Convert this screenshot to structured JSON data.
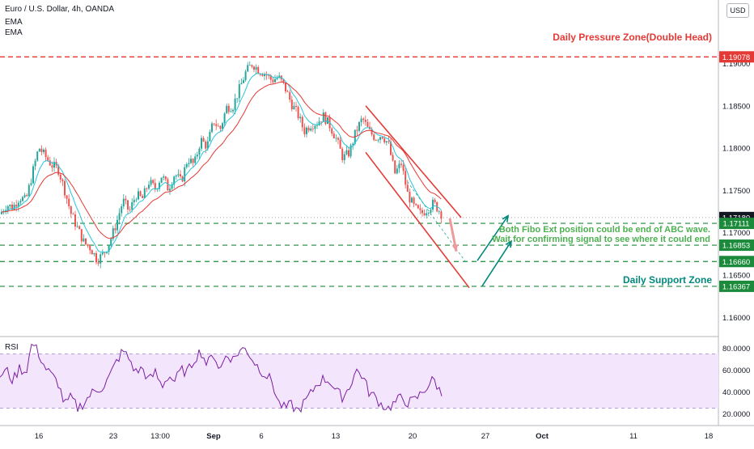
{
  "header": {
    "symbol": "Euro / U.S. Dollar, 4h, OANDA",
    "indicators": [
      "EMA",
      "EMA"
    ],
    "currency_button": "USD"
  },
  "annotations": {
    "pressure_zone": "Daily Pressure Zone(Double Head)",
    "support_zone": "Daily Support Zone",
    "note_line1": "Both Fibo Ext position could be end of ABC wave.",
    "note_line2": "Wait for confirming signal to see where it could end"
  },
  "colors": {
    "bull": "#26a69a",
    "bear": "#ef5350",
    "red_line": "#e53935",
    "green_line": "#1b8a3a",
    "teal_text": "#00897b",
    "rsi_line": "#7b1fa2",
    "rsi_band": "#f3e5fc"
  },
  "chart_data": [
    {
      "type": "candlestick",
      "y_axis_ticks": [
        "1.19000",
        "1.18500",
        "1.18000",
        "1.17500",
        "1.17000",
        "1.16500",
        "1.16000"
      ],
      "ylim": [
        1.1585,
        1.1975
      ],
      "x_axis_ticks": [
        "16",
        "23",
        "13:00",
        "Sep",
        "6",
        "13",
        "20",
        "27",
        "Oct",
        "11",
        "18"
      ],
      "levels": [
        {
          "name": "pressure",
          "value": 1.19078,
          "label": "1.19078",
          "style": "red-dashed"
        },
        {
          "name": "last-price",
          "value": 1.1718,
          "label": "1.17180",
          "style": "dotted"
        },
        {
          "name": "level-1",
          "value": 1.17111,
          "label": "1.17111",
          "style": "green-dashed"
        },
        {
          "name": "level-2",
          "value": 1.16853,
          "label": "1.16853",
          "style": "green-dashed"
        },
        {
          "name": "level-3",
          "value": 1.1666,
          "label": "1.16660",
          "style": "green-dashed"
        },
        {
          "name": "support",
          "value": 1.16367,
          "label": "1.16367",
          "style": "green-dashed"
        }
      ],
      "price_path": [
        [
          0,
          1.1722
        ],
        [
          8,
          1.1733
        ],
        [
          16,
          1.173
        ],
        [
          24,
          1.1742
        ],
        [
          32,
          1.1738
        ],
        [
          40,
          1.177
        ],
        [
          48,
          1.1801
        ],
        [
          56,
          1.179
        ],
        [
          64,
          1.178
        ],
        [
          72,
          1.1775
        ],
        [
          80,
          1.175
        ],
        [
          88,
          1.1722
        ],
        [
          96,
          1.1705
        ],
        [
          104,
          1.1688
        ],
        [
          112,
          1.1682
        ],
        [
          120,
          1.1668
        ],
        [
          128,
          1.1675
        ],
        [
          136,
          1.169
        ],
        [
          144,
          1.1712
        ],
        [
          152,
          1.1738
        ],
        [
          160,
          1.1725
        ],
        [
          168,
          1.1745
        ],
        [
          176,
          1.174
        ],
        [
          184,
          1.176
        ],
        [
          192,
          1.1752
        ],
        [
          200,
          1.1768
        ],
        [
          208,
          1.1752
        ],
        [
          216,
          1.177
        ],
        [
          224,
          1.176
        ],
        [
          232,
          1.1788
        ],
        [
          240,
          1.178
        ],
        [
          248,
          1.181
        ],
        [
          256,
          1.1802
        ],
        [
          264,
          1.1832
        ],
        [
          272,
          1.1822
        ],
        [
          280,
          1.1848
        ],
        [
          288,
          1.185
        ],
        [
          296,
          1.187
        ],
        [
          304,
          1.189
        ],
        [
          312,
          1.19
        ],
        [
          320,
          1.1892
        ],
        [
          328,
          1.1888
        ],
        [
          336,
          1.188
        ],
        [
          344,
          1.1884
        ],
        [
          352,
          1.1872
        ],
        [
          360,
          1.1853
        ],
        [
          368,
          1.184
        ],
        [
          376,
          1.182
        ],
        [
          384,
          1.1828
        ],
        [
          392,
          1.183
        ],
        [
          400,
          1.1838
        ],
        [
          408,
          1.1826
        ],
        [
          416,
          1.181
        ],
        [
          424,
          1.1788
        ],
        [
          432,
          1.1795
        ],
        [
          440,
          1.182
        ],
        [
          448,
          1.1835
        ],
        [
          456,
          1.182
        ],
        [
          464,
          1.1812
        ],
        [
          472,
          1.1816
        ],
        [
          480,
          1.1805
        ],
        [
          488,
          1.177
        ],
        [
          496,
          1.1782
        ],
        [
          504,
          1.1745
        ],
        [
          512,
          1.173
        ],
        [
          520,
          1.1722
        ],
        [
          528,
          1.1728
        ],
        [
          536,
          1.1735
        ],
        [
          544,
          1.1725
        ],
        [
          548,
          1.1718
        ]
      ],
      "channel": {
        "upper": {
          "from": [
            452,
            1.185
          ],
          "to": [
            570,
            1.1718
          ]
        },
        "lower": {
          "from": [
            452,
            1.1795
          ],
          "to": [
            580,
            1.1635
          ]
        }
      },
      "arrows": [
        {
          "from": [
            590,
            1.1667
          ],
          "to": [
            628,
            1.172
          ],
          "color": "teal"
        },
        {
          "from": [
            596,
            1.1637
          ],
          "to": [
            632,
            1.169
          ],
          "color": "teal"
        },
        {
          "from": [
            556,
            1.1717
          ],
          "to": [
            564,
            1.1678
          ],
          "color": "red"
        }
      ]
    },
    {
      "type": "line",
      "title": "RSI",
      "y_axis_ticks": [
        "80.0000",
        "60.0000",
        "40.0000",
        "20.0000"
      ],
      "ylim": [
        12,
        88
      ],
      "band": [
        25,
        75
      ],
      "values": [
        [
          0,
          55
        ],
        [
          8,
          60
        ],
        [
          16,
          50
        ],
        [
          24,
          62
        ],
        [
          32,
          58
        ],
        [
          40,
          86
        ],
        [
          48,
          75
        ],
        [
          56,
          62
        ],
        [
          64,
          55
        ],
        [
          72,
          48
        ],
        [
          80,
          28
        ],
        [
          88,
          35
        ],
        [
          96,
          25
        ],
        [
          104,
          30
        ],
        [
          112,
          38
        ],
        [
          120,
          42
        ],
        [
          128,
          45
        ],
        [
          136,
          55
        ],
        [
          144,
          68
        ],
        [
          152,
          78
        ],
        [
          160,
          70
        ],
        [
          168,
          58
        ],
        [
          176,
          62
        ],
        [
          184,
          50
        ],
        [
          192,
          58
        ],
        [
          200,
          45
        ],
        [
          208,
          55
        ],
        [
          216,
          50
        ],
        [
          224,
          60
        ],
        [
          232,
          58
        ],
        [
          240,
          70
        ],
        [
          248,
          78
        ],
        [
          256,
          65
        ],
        [
          264,
          75
        ],
        [
          272,
          60
        ],
        [
          280,
          75
        ],
        [
          288,
          70
        ],
        [
          296,
          78
        ],
        [
          304,
          80
        ],
        [
          312,
          70
        ],
        [
          320,
          62
        ],
        [
          328,
          56
        ],
        [
          336,
          50
        ],
        [
          344,
          30
        ],
        [
          352,
          25
        ],
        [
          360,
          28
        ],
        [
          368,
          22
        ],
        [
          376,
          30
        ],
        [
          384,
          38
        ],
        [
          392,
          48
        ],
        [
          400,
          52
        ],
        [
          408,
          50
        ],
        [
          416,
          40
        ],
        [
          424,
          35
        ],
        [
          432,
          45
        ],
        [
          440,
          60
        ],
        [
          448,
          55
        ],
        [
          456,
          40
        ],
        [
          464,
          35
        ],
        [
          472,
          28
        ],
        [
          480,
          25
        ],
        [
          488,
          30
        ],
        [
          496,
          35
        ],
        [
          504,
          30
        ],
        [
          512,
          32
        ],
        [
          520,
          38
        ],
        [
          528,
          45
        ],
        [
          536,
          52
        ],
        [
          544,
          40
        ],
        [
          548,
          35
        ]
      ]
    }
  ]
}
